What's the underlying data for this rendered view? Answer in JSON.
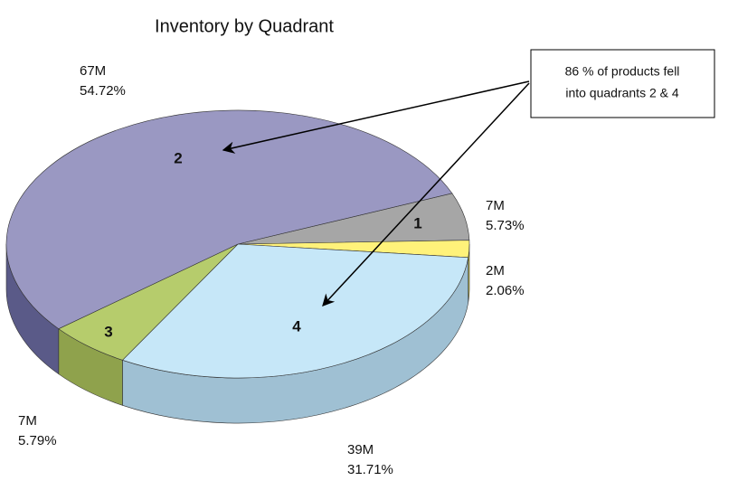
{
  "chart_data": {
    "type": "pie3d",
    "title": "Inventory by Quadrant",
    "categories": [
      "1",
      null,
      "4",
      "3",
      "2"
    ],
    "values": [
      5.73,
      2.06,
      31.71,
      5.79,
      54.72
    ],
    "value_labels": [
      "5.73%",
      "2.06%",
      "31.71%",
      "5.79%",
      "54.72%"
    ],
    "amount_labels": [
      "7M",
      "2M",
      "39M",
      "7M",
      "67M"
    ],
    "colors": [
      "#a6a6a6",
      "#fff27a",
      "#c6e7f8",
      "#b6cc6c",
      "#9a98c2"
    ],
    "side_colors": [
      "#8a8a8a",
      "#cbbf3c",
      "#9fc0d3",
      "#8fa24c",
      "#5a5a88"
    ],
    "annotation": [
      "86 % of products fell",
      "into quadrants 2 & 4"
    ]
  }
}
